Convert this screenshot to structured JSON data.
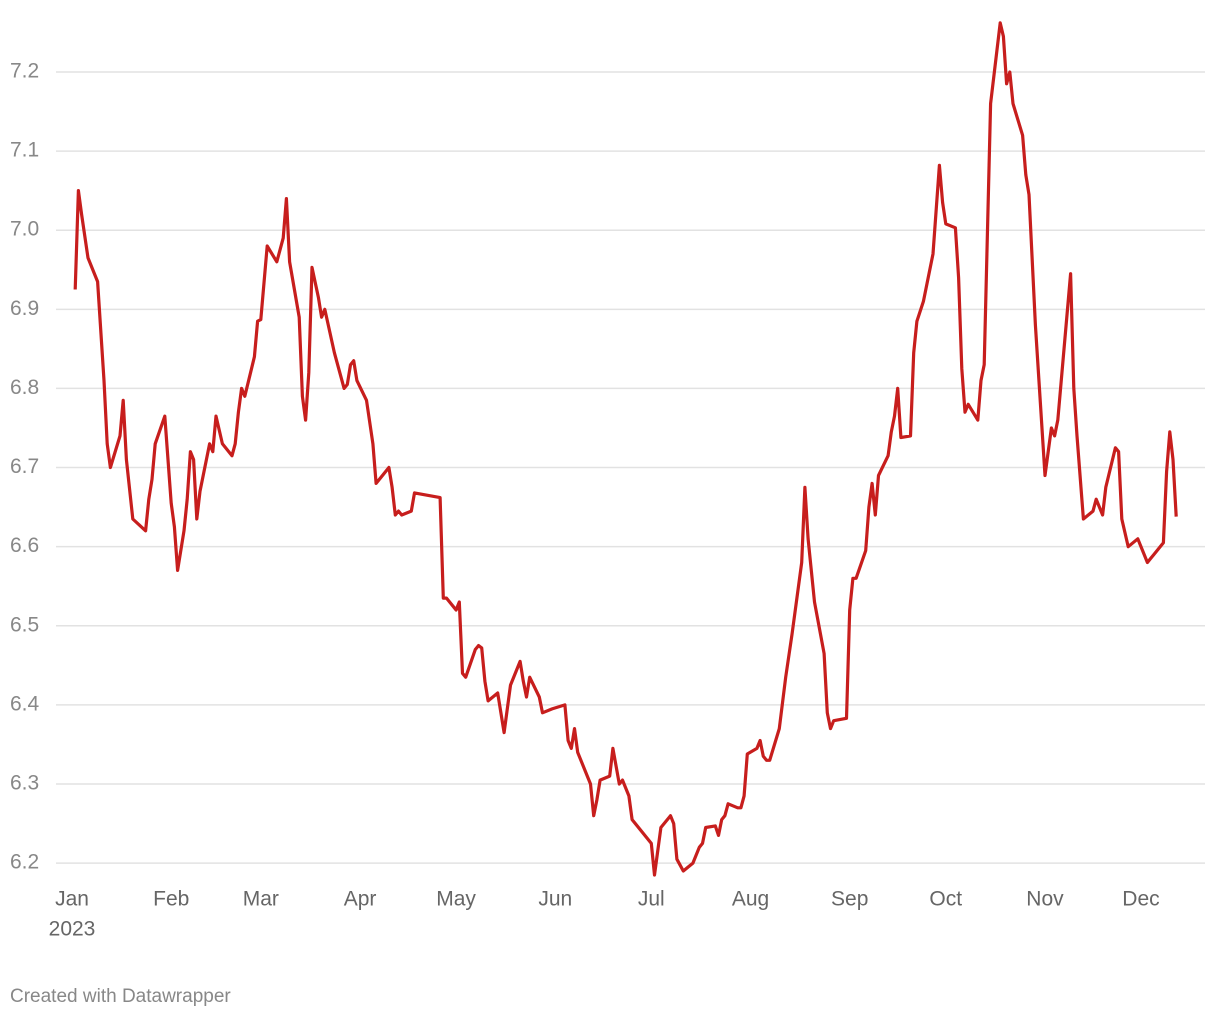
{
  "chart_data": {
    "type": "line",
    "x": [
      1,
      2,
      3,
      5,
      8,
      10,
      11,
      12,
      15,
      16,
      17,
      19,
      23,
      24,
      25,
      26,
      29,
      31,
      32,
      33,
      35,
      36,
      37,
      38,
      39,
      40,
      43,
      44,
      45,
      47,
      50,
      51,
      52,
      53,
      54,
      57,
      58,
      59,
      61,
      64,
      66,
      67,
      68,
      71,
      72,
      73,
      74,
      75,
      77,
      78,
      79,
      82,
      85,
      86,
      87,
      88,
      89,
      92,
      94,
      95,
      99,
      100,
      101,
      102,
      103,
      106,
      107,
      115,
      116,
      117,
      120,
      121,
      122,
      123,
      126,
      127,
      128,
      129,
      130,
      133,
      135,
      137,
      140,
      141,
      142,
      143,
      146,
      147,
      150,
      154,
      155,
      156,
      157,
      158,
      161,
      162,
      163,
      164,
      165,
      168,
      169,
      171,
      172,
      174,
      175,
      181,
      182,
      184,
      187,
      188,
      189,
      191,
      194,
      196,
      197,
      198,
      201,
      202,
      203,
      204,
      205,
      208,
      209,
      210,
      211,
      214,
      215,
      216,
      217,
      218,
      221,
      223,
      225,
      228,
      229,
      230,
      232,
      235,
      236,
      237,
      238,
      242,
      243,
      244,
      245,
      248,
      249,
      250,
      251,
      252,
      255,
      256,
      257,
      258,
      259,
      262,
      263,
      264,
      266,
      269,
      271,
      272,
      273,
      276,
      277,
      278,
      279,
      280,
      283,
      284,
      285,
      287,
      290,
      291,
      292,
      293,
      294,
      297,
      298,
      299,
      301,
      304,
      306,
      307,
      308,
      312,
      313,
      314,
      316,
      319,
      320,
      322,
      323,
      326,
      327,
      328,
      330,
      333,
      336,
      337,
      338,
      341,
      342,
      343,
      344,
      345
    ],
    "values": [
      6.925,
      7.05,
      7.02,
      6.965,
      6.935,
      6.81,
      6.73,
      6.7,
      6.74,
      6.785,
      6.71,
      6.635,
      6.62,
      6.66,
      6.685,
      6.73,
      6.765,
      6.655,
      6.625,
      6.57,
      6.62,
      6.66,
      6.72,
      6.71,
      6.635,
      6.67,
      6.73,
      6.72,
      6.765,
      6.73,
      6.715,
      6.73,
      6.77,
      6.8,
      6.79,
      6.84,
      6.885,
      6.887,
      6.98,
      6.96,
      6.99,
      7.04,
      6.96,
      6.89,
      6.79,
      6.76,
      6.82,
      6.953,
      6.915,
      6.89,
      6.9,
      6.845,
      6.8,
      6.805,
      6.83,
      6.835,
      6.81,
      6.785,
      6.73,
      6.68,
      6.7,
      6.675,
      6.64,
      6.645,
      6.64,
      6.645,
      6.668,
      6.662,
      6.535,
      6.535,
      6.52,
      6.53,
      6.44,
      6.435,
      6.47,
      6.475,
      6.472,
      6.43,
      6.405,
      6.415,
      6.365,
      6.425,
      6.455,
      6.43,
      6.41,
      6.435,
      6.41,
      6.39,
      6.395,
      6.4,
      6.355,
      6.345,
      6.37,
      6.34,
      6.31,
      6.3,
      6.26,
      6.28,
      6.305,
      6.31,
      6.345,
      6.3,
      6.305,
      6.285,
      6.255,
      6.225,
      6.185,
      6.245,
      6.26,
      6.25,
      6.205,
      6.19,
      6.2,
      6.22,
      6.225,
      6.245,
      6.247,
      6.235,
      6.255,
      6.26,
      6.275,
      6.27,
      6.27,
      6.285,
      6.338,
      6.345,
      6.355,
      6.335,
      6.33,
      6.33,
      6.37,
      6.435,
      6.49,
      6.58,
      6.675,
      6.61,
      6.53,
      6.465,
      6.39,
      6.37,
      6.38,
      6.383,
      6.52,
      6.56,
      6.56,
      6.595,
      6.65,
      6.68,
      6.64,
      6.69,
      6.715,
      6.745,
      6.765,
      6.8,
      6.738,
      6.74,
      6.845,
      6.885,
      6.91,
      6.97,
      7.082,
      7.035,
      7.008,
      7.003,
      6.94,
      6.825,
      6.77,
      6.78,
      6.76,
      6.81,
      6.83,
      7.16,
      7.262,
      7.245,
      7.185,
      7.2,
      7.16,
      7.12,
      7.07,
      7.045,
      6.88,
      6.69,
      6.75,
      6.74,
      6.76,
      6.945,
      6.8,
      6.74,
      6.635,
      6.645,
      6.66,
      6.64,
      6.675,
      6.725,
      6.72,
      6.635,
      6.6,
      6.61,
      6.58,
      6.585,
      6.59,
      6.605,
      6.695,
      6.745,
      6.71,
      6.638
    ],
    "color": "#c71e1d",
    "xlim": [
      -5,
      354
    ],
    "xticks": [
      {
        "value": 0,
        "label": "Jan"
      },
      {
        "value": 31,
        "label": "Feb"
      },
      {
        "value": 59,
        "label": "Mar"
      },
      {
        "value": 90,
        "label": "Apr"
      },
      {
        "value": 120,
        "label": "May"
      },
      {
        "value": 151,
        "label": "Jun"
      },
      {
        "value": 181,
        "label": "Jul"
      },
      {
        "value": 212,
        "label": "Aug"
      },
      {
        "value": 243,
        "label": "Sep"
      },
      {
        "value": 273,
        "label": "Oct"
      },
      {
        "value": 304,
        "label": "Nov"
      },
      {
        "value": 334,
        "label": "Dec"
      }
    ],
    "year": "2023",
    "ylim": [
      6.185,
      7.272
    ],
    "yticks": [
      6.2,
      6.3,
      6.4,
      6.5,
      6.6,
      6.7,
      6.8,
      6.9,
      {
        "value": 7.0,
        "label": "7.0"
      },
      7.1,
      7.2
    ],
    "grid": true,
    "footer": "Created with Datawrapper"
  }
}
